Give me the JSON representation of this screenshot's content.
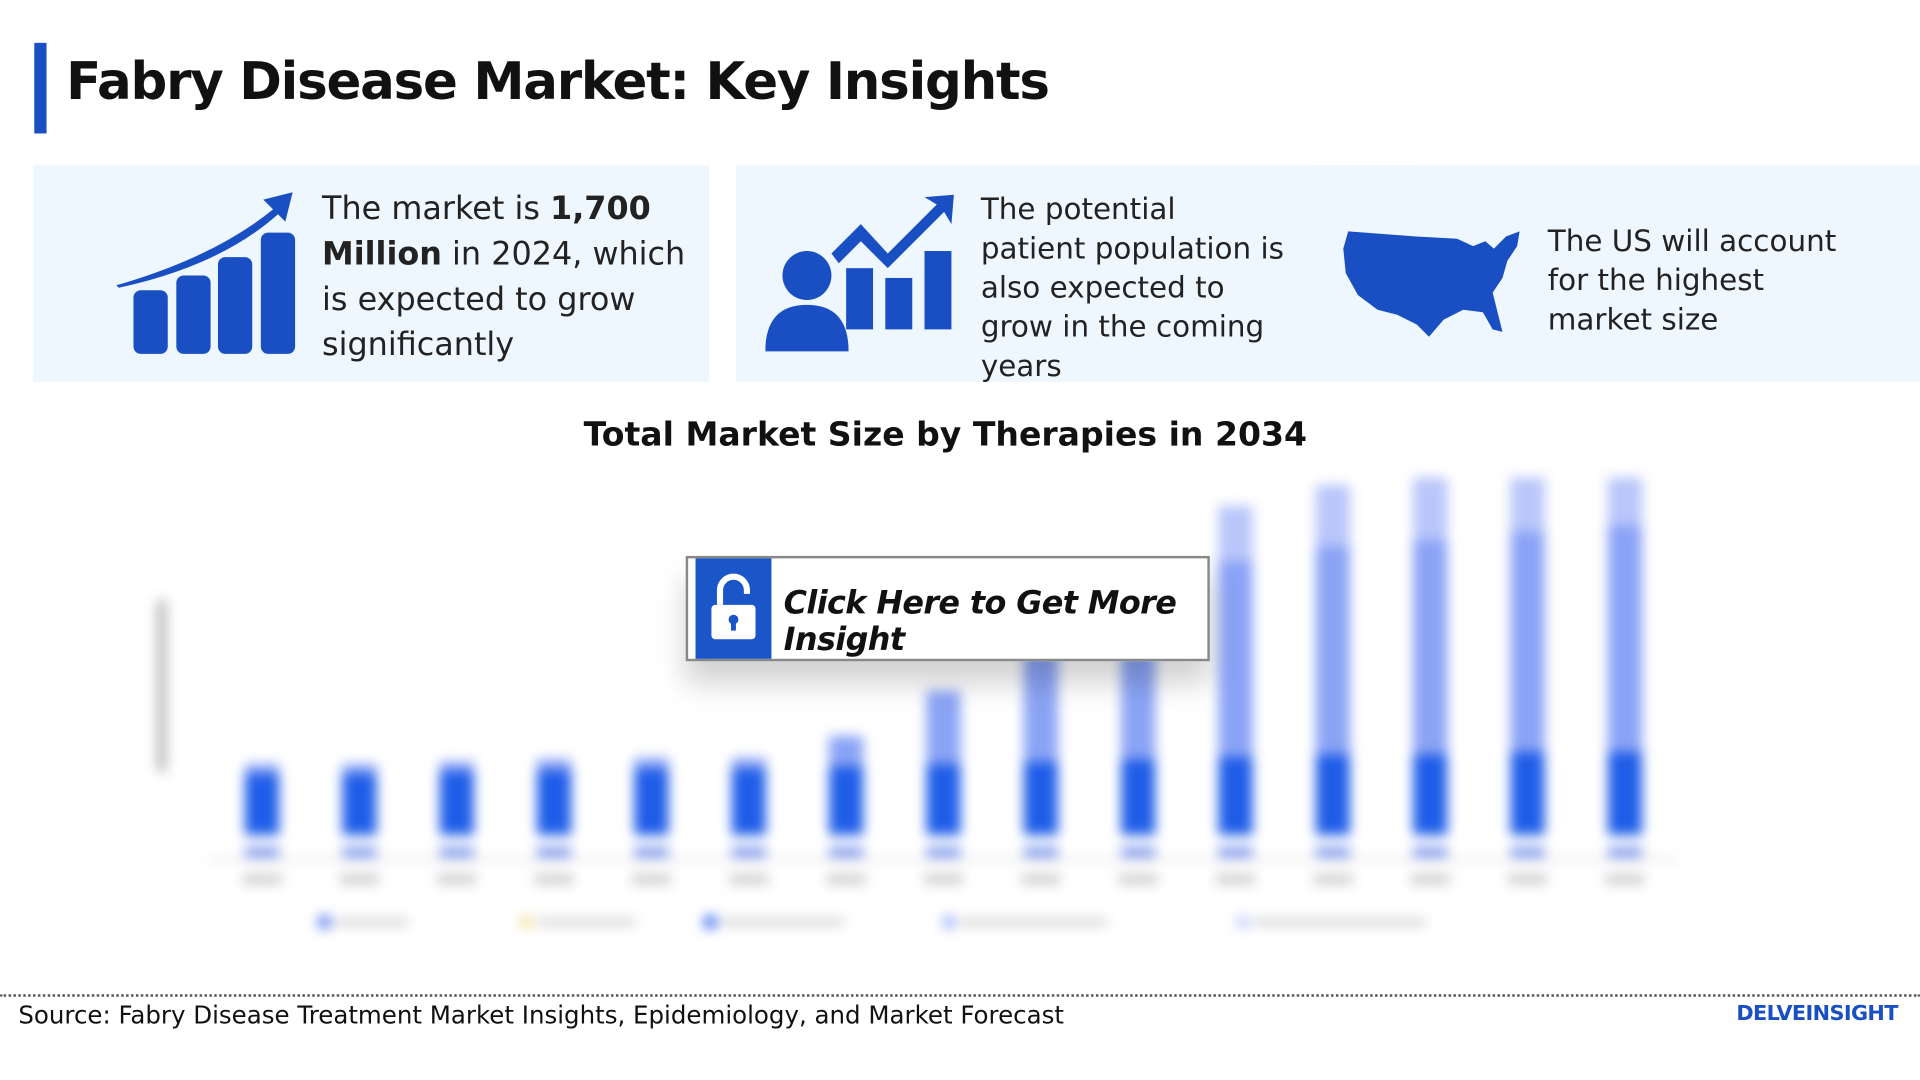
{
  "header": {
    "title": "Fabry Disease Market: Key Insights"
  },
  "cards": [
    {
      "icon": "bar-growth-icon",
      "text_pre": "The market is ",
      "text_bold1": "1,700",
      "text_bold2": "Million",
      "text_post": " in 2024, which is expected to grow significantly"
    },
    {
      "icon": "patient-growth-icon",
      "text": "The potential patient population is also expected to grow in the coming years"
    },
    {
      "icon": "us-map-icon",
      "text": "The US will account for the highest market size"
    }
  ],
  "chart_data": {
    "type": "bar",
    "stacked": true,
    "title": "Total Market Size by Therapies in 2034",
    "note_blurred": true,
    "series": [
      {
        "color": "#1f5de8",
        "values": [
          50,
          50,
          52,
          53,
          54,
          54,
          56,
          58,
          60,
          62,
          64,
          66,
          66,
          68,
          68
        ]
      },
      {
        "color": "#8aa3f5",
        "values": [
          8,
          8,
          8,
          9,
          9,
          9,
          25,
          60,
          120,
          125,
          160,
          170,
          175,
          180,
          185
        ]
      },
      {
        "color": "#b9c6fa",
        "values": [
          0,
          0,
          0,
          0,
          0,
          0,
          0,
          0,
          0,
          0,
          45,
          50,
          55,
          60,
          63
        ]
      }
    ],
    "colors": {
      "accent": "#1a4fc4"
    }
  },
  "cta": {
    "label": "Click Here to Get More Insight",
    "icon": "unlock-icon"
  },
  "footer": {
    "source": "Source: Fabry Disease Treatment Market Insights, Epidemiology, and Market Forecast",
    "logo": "DELVEINSIGHT"
  }
}
